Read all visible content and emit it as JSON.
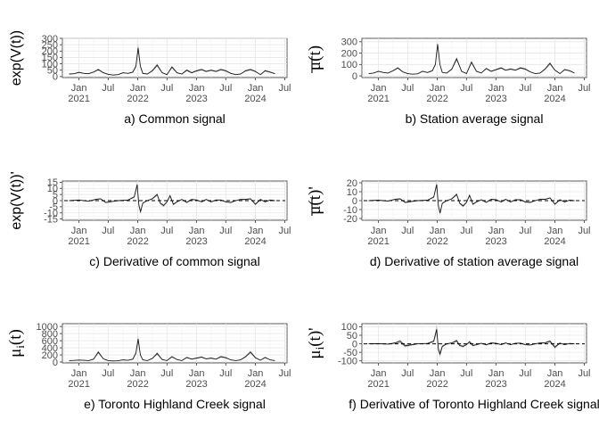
{
  "chart_data": [
    {
      "type": "line",
      "caption": "a) Common signal",
      "ylabel": "exp(V(t))",
      "yticks": [
        0,
        50,
        100,
        150,
        200,
        250,
        300
      ],
      "ylim": [
        -8,
        300
      ],
      "baseline": null,
      "xlim": [
        "2020-09-20",
        "2024-07-15"
      ],
      "xticks": [
        "2021-01-01",
        "2021-07-01",
        "2022-01-01",
        "2022-07-01",
        "2023-01-01",
        "2023-07-01",
        "2024-01-01",
        "2024-07-01"
      ],
      "xticklabels": [
        "Jan\n2021",
        "Jul",
        "Jan\n2022",
        "Jul",
        "Jan\n2023",
        "Jul",
        "Jan\n2024",
        "Jul"
      ],
      "x": [
        "2020-11-01",
        "2020-12-01",
        "2021-01-01",
        "2021-02-01",
        "2021-03-01",
        "2021-04-01",
        "2021-05-01",
        "2021-06-01",
        "2021-07-01",
        "2021-08-01",
        "2021-09-01",
        "2021-10-01",
        "2021-11-01",
        "2021-12-01",
        "2021-12-20",
        "2022-01-03",
        "2022-01-17",
        "2022-02-01",
        "2022-03-01",
        "2022-04-01",
        "2022-05-01",
        "2022-06-01",
        "2022-07-01",
        "2022-08-01",
        "2022-09-01",
        "2022-10-01",
        "2022-11-01",
        "2022-12-01",
        "2023-01-01",
        "2023-02-01",
        "2023-03-01",
        "2023-04-01",
        "2023-05-01",
        "2023-06-01",
        "2023-07-01",
        "2023-08-01",
        "2023-09-01",
        "2023-10-01",
        "2023-11-01",
        "2023-12-01",
        "2024-01-01",
        "2024-02-01",
        "2024-03-01",
        "2024-04-01",
        "2024-05-01"
      ],
      "series": [
        {
          "values": [
            20,
            22,
            33,
            25,
            22,
            35,
            55,
            30,
            18,
            12,
            15,
            30,
            25,
            35,
            80,
            225,
            80,
            25,
            20,
            45,
            90,
            30,
            15,
            75,
            30,
            20,
            50,
            30,
            45,
            55,
            40,
            50,
            40,
            55,
            45,
            25,
            15,
            20,
            45,
            55,
            40,
            15,
            45,
            35,
            22
          ],
          "band": [
            3,
            3,
            4,
            3,
            3,
            4,
            8,
            4,
            3,
            2,
            2,
            4,
            3,
            5,
            12,
            35,
            12,
            4,
            3,
            7,
            14,
            5,
            2,
            10,
            5,
            3,
            8,
            5,
            7,
            8,
            6,
            7,
            6,
            8,
            7,
            4,
            2,
            3,
            7,
            8,
            6,
            2,
            7,
            5,
            3
          ]
        }
      ]
    },
    {
      "type": "line",
      "caption": "b) Station average signal",
      "ylabel": "μ(t)",
      "ylabel_overline": true,
      "yticks": [
        0,
        100,
        200,
        300
      ],
      "ylim": [
        -15,
        330
      ],
      "baseline": null,
      "xlim": [
        "2020-09-20",
        "2024-07-15"
      ],
      "xticks": [
        "2021-01-01",
        "2021-07-01",
        "2022-01-01",
        "2022-07-01",
        "2023-01-01",
        "2023-07-01",
        "2024-01-01",
        "2024-07-01"
      ],
      "xticklabels": [
        "Jan\n2021",
        "Jul",
        "Jan\n2022",
        "Jul",
        "Jan\n2023",
        "Jul",
        "Jan\n2024",
        "Jul"
      ],
      "x": [
        "2020-11-01",
        "2020-12-01",
        "2021-01-01",
        "2021-02-01",
        "2021-03-01",
        "2021-04-01",
        "2021-05-01",
        "2021-06-01",
        "2021-07-01",
        "2021-08-01",
        "2021-09-01",
        "2021-10-01",
        "2021-11-01",
        "2021-12-01",
        "2021-12-20",
        "2022-01-03",
        "2022-01-17",
        "2022-02-01",
        "2022-03-01",
        "2022-04-01",
        "2022-05-01",
        "2022-06-01",
        "2022-07-01",
        "2022-08-01",
        "2022-09-01",
        "2022-10-01",
        "2022-11-01",
        "2022-12-01",
        "2023-01-01",
        "2023-02-01",
        "2023-03-01",
        "2023-04-01",
        "2023-05-01",
        "2023-06-01",
        "2023-07-01",
        "2023-08-01",
        "2023-09-01",
        "2023-10-01",
        "2023-11-01",
        "2023-12-01",
        "2024-01-01",
        "2024-02-01",
        "2024-03-01",
        "2024-04-01",
        "2024-05-01"
      ],
      "series": [
        {
          "values": [
            20,
            25,
            40,
            30,
            25,
            45,
            70,
            35,
            20,
            15,
            18,
            40,
            30,
            45,
            100,
            280,
            100,
            30,
            25,
            60,
            150,
            40,
            20,
            120,
            40,
            25,
            65,
            40,
            55,
            70,
            50,
            60,
            50,
            70,
            60,
            35,
            20,
            25,
            60,
            110,
            50,
            20,
            55,
            45,
            25
          ],
          "band": [
            3,
            3,
            5,
            4,
            3,
            6,
            9,
            5,
            3,
            2,
            2,
            5,
            4,
            6,
            10,
            15,
            10,
            4,
            3,
            8,
            18,
            5,
            3,
            14,
            5,
            3,
            8,
            5,
            7,
            9,
            6,
            8,
            6,
            9,
            8,
            4,
            2,
            3,
            8,
            13,
            6,
            2,
            7,
            6,
            3
          ]
        }
      ]
    },
    {
      "type": "line",
      "caption": "c) Derivative of common signal",
      "ylabel": "exp(V(t))'",
      "yticks": [
        -15,
        -10,
        -5,
        0,
        5,
        10,
        15
      ],
      "ylim": [
        -16,
        16
      ],
      "baseline": 0,
      "xlim": [
        "2020-09-20",
        "2024-07-15"
      ],
      "xticks": [
        "2021-01-01",
        "2021-07-01",
        "2022-01-01",
        "2022-07-01",
        "2023-01-01",
        "2023-07-01",
        "2024-01-01",
        "2024-07-01"
      ],
      "xticklabels": [
        "Jan\n2021",
        "Jul",
        "Jan\n2022",
        "Jul",
        "Jan\n2023",
        "Jul",
        "Jan\n2024",
        "Jul"
      ],
      "x": [
        "2020-11-01",
        "2021-01-01",
        "2021-03-01",
        "2021-04-15",
        "2021-05-15",
        "2021-06-15",
        "2021-09-01",
        "2021-11-01",
        "2021-12-10",
        "2021-12-28",
        "2022-01-08",
        "2022-01-18",
        "2022-02-01",
        "2022-03-01",
        "2022-04-01",
        "2022-05-01",
        "2022-05-20",
        "2022-06-10",
        "2022-07-01",
        "2022-07-20",
        "2022-08-10",
        "2022-09-01",
        "2022-10-01",
        "2022-11-01",
        "2022-12-01",
        "2023-01-01",
        "2023-02-01",
        "2023-03-01",
        "2023-04-01",
        "2023-05-01",
        "2023-06-01",
        "2023-07-01",
        "2023-08-01",
        "2023-09-01",
        "2023-10-01",
        "2023-11-01",
        "2023-12-01",
        "2024-01-01",
        "2024-02-01",
        "2024-03-01",
        "2024-04-01",
        "2024-05-01"
      ],
      "series": [
        {
          "values": [
            0,
            0.5,
            -0.5,
            1,
            1.5,
            -1.5,
            0,
            0.5,
            3,
            13,
            -4,
            -9,
            -2,
            0,
            1.5,
            5,
            -2,
            -4,
            -1,
            4,
            -3,
            -1,
            1,
            -1.5,
            1,
            0.5,
            -1,
            1,
            -1,
            0.5,
            0.5,
            -1,
            -1.5,
            0,
            1,
            1,
            1.5,
            -3,
            1,
            -1,
            0.5,
            0
          ],
          "band": [
            0.3,
            0.3,
            0.3,
            0.5,
            0.5,
            0.6,
            0.3,
            0.3,
            1,
            2.5,
            1.5,
            1.8,
            0.8,
            0.3,
            0.6,
            1.2,
            0.8,
            1.2,
            0.5,
            1,
            0.9,
            0.5,
            0.4,
            0.6,
            0.4,
            0.4,
            0.5,
            0.5,
            0.5,
            0.4,
            0.4,
            0.5,
            0.6,
            0.3,
            0.5,
            0.5,
            0.6,
            0.9,
            0.5,
            0.5,
            0.3,
            0.3
          ]
        }
      ]
    },
    {
      "type": "line",
      "caption": "d) Derivative of station average signal",
      "ylabel": "μ(t)'",
      "ylabel_overline": true,
      "yticks": [
        -20,
        -10,
        0,
        10,
        20
      ],
      "ylim": [
        -22,
        22
      ],
      "baseline": 0,
      "xlim": [
        "2020-09-20",
        "2024-07-15"
      ],
      "xticks": [
        "2021-01-01",
        "2021-07-01",
        "2022-01-01",
        "2022-07-01",
        "2023-01-01",
        "2023-07-01",
        "2024-01-01",
        "2024-07-01"
      ],
      "xticklabels": [
        "Jan\n2021",
        "Jul",
        "Jan\n2022",
        "Jul",
        "Jan\n2023",
        "Jul",
        "Jan\n2024",
        "Jul"
      ],
      "x": [
        "2020-11-01",
        "2021-01-01",
        "2021-03-01",
        "2021-04-15",
        "2021-05-15",
        "2021-06-15",
        "2021-09-01",
        "2021-11-01",
        "2021-12-10",
        "2021-12-28",
        "2022-01-08",
        "2022-01-18",
        "2022-02-01",
        "2022-03-01",
        "2022-04-01",
        "2022-05-01",
        "2022-05-20",
        "2022-06-10",
        "2022-07-01",
        "2022-07-20",
        "2022-08-10",
        "2022-09-01",
        "2022-10-01",
        "2022-11-01",
        "2022-12-01",
        "2023-01-01",
        "2023-02-01",
        "2023-03-01",
        "2023-04-01",
        "2023-05-01",
        "2023-06-01",
        "2023-07-01",
        "2023-08-01",
        "2023-09-01",
        "2023-10-01",
        "2023-11-01",
        "2023-12-01",
        "2024-01-01",
        "2024-02-01",
        "2024-03-01",
        "2024-04-01",
        "2024-05-01"
      ],
      "series": [
        {
          "values": [
            0,
            0.5,
            -0.5,
            1.5,
            2,
            -2,
            0,
            0.5,
            4,
            18,
            -6,
            -14,
            -3,
            0,
            2,
            7,
            -3,
            -6,
            -2,
            6,
            -4,
            -1.5,
            1,
            -2,
            1.5,
            1,
            -1.5,
            1.5,
            -1.5,
            1,
            1,
            -1.5,
            -2,
            0,
            1.5,
            1.5,
            3,
            -4,
            1,
            -1.5,
            0.5,
            0
          ],
          "band": [
            0.4,
            0.4,
            0.4,
            0.6,
            0.7,
            0.8,
            0.4,
            0.4,
            1.3,
            3.5,
            2,
            2.6,
            1.1,
            0.4,
            0.8,
            1.7,
            1.1,
            1.6,
            0.7,
            1.4,
            1.2,
            0.7,
            0.5,
            0.8,
            0.6,
            0.5,
            0.7,
            0.7,
            0.7,
            0.5,
            0.5,
            0.7,
            0.8,
            0.4,
            0.7,
            0.7,
            0.9,
            1.3,
            0.6,
            0.6,
            0.4,
            0.4
          ]
        }
      ]
    },
    {
      "type": "line",
      "caption": "e) Toronto Highland Creek signal",
      "ylabel": "μ",
      "ylabel_sub": "i",
      "ylabel_tail": "(t)",
      "yticks": [
        0,
        200,
        400,
        600,
        800,
        1000
      ],
      "ylim": [
        -25,
        1080
      ],
      "baseline": null,
      "xlim": [
        "2020-09-20",
        "2024-07-15"
      ],
      "xticks": [
        "2021-01-01",
        "2021-07-01",
        "2022-01-01",
        "2022-07-01",
        "2023-01-01",
        "2023-07-01",
        "2024-01-01",
        "2024-07-01"
      ],
      "xticklabels": [
        "Jan\n2021",
        "Jul",
        "Jan\n2022",
        "Jul",
        "Jan\n2023",
        "Jul",
        "Jan\n2024",
        "Jul"
      ],
      "x": [
        "2020-11-01",
        "2020-12-01",
        "2021-01-01",
        "2021-02-01",
        "2021-03-01",
        "2021-04-01",
        "2021-05-01",
        "2021-06-01",
        "2021-07-01",
        "2021-08-01",
        "2021-09-01",
        "2021-10-01",
        "2021-11-01",
        "2021-12-01",
        "2021-12-20",
        "2022-01-03",
        "2022-01-17",
        "2022-02-01",
        "2022-03-01",
        "2022-04-01",
        "2022-05-01",
        "2022-06-01",
        "2022-07-01",
        "2022-08-01",
        "2022-09-01",
        "2022-10-01",
        "2022-11-01",
        "2022-12-01",
        "2023-01-01",
        "2023-02-01",
        "2023-03-01",
        "2023-04-01",
        "2023-05-01",
        "2023-06-01",
        "2023-07-01",
        "2023-08-01",
        "2023-09-01",
        "2023-10-01",
        "2023-11-01",
        "2023-12-01",
        "2024-01-01",
        "2024-02-01",
        "2024-03-01",
        "2024-04-01",
        "2024-05-01"
      ],
      "series": [
        {
          "values": [
            40,
            45,
            55,
            50,
            40,
            80,
            280,
            90,
            40,
            30,
            35,
            60,
            50,
            80,
            250,
            650,
            200,
            60,
            40,
            100,
            240,
            70,
            40,
            150,
            70,
            40,
            130,
            80,
            110,
            140,
            90,
            110,
            80,
            150,
            120,
            60,
            40,
            60,
            150,
            280,
            120,
            50,
            130,
            60,
            40
          ],
          "band": [
            8,
            8,
            10,
            9,
            8,
            15,
            45,
            16,
            8,
            6,
            6,
            11,
            9,
            14,
            40,
            110,
            35,
            11,
            8,
            18,
            40,
            13,
            8,
            26,
            13,
            8,
            22,
            14,
            19,
            24,
            16,
            19,
            14,
            26,
            21,
            11,
            8,
            11,
            26,
            45,
            21,
            9,
            22,
            11,
            8
          ]
        }
      ]
    },
    {
      "type": "line",
      "caption": "f) Derivative of Toronto Highland Creek signal",
      "ylabel": "μ",
      "ylabel_sub": "i",
      "ylabel_tail": "(t)'",
      "yticks": [
        -100,
        -50,
        0,
        50,
        100
      ],
      "ylim": [
        -112,
        118
      ],
      "baseline": 0,
      "xlim": [
        "2020-09-20",
        "2024-07-15"
      ],
      "xticks": [
        "2021-01-01",
        "2021-07-01",
        "2022-01-01",
        "2022-07-01",
        "2023-01-01",
        "2023-07-01",
        "2024-01-01",
        "2024-07-01"
      ],
      "xticklabels": [
        "Jan\n2021",
        "Jul",
        "Jan\n2022",
        "Jul",
        "Jan\n2023",
        "Jul",
        "Jan\n2024",
        "Jul"
      ],
      "x": [
        "2020-11-01",
        "2021-01-01",
        "2021-03-01",
        "2021-04-15",
        "2021-05-15",
        "2021-06-15",
        "2021-09-01",
        "2021-11-01",
        "2021-12-10",
        "2021-12-28",
        "2022-01-08",
        "2022-01-18",
        "2022-02-01",
        "2022-03-01",
        "2022-04-01",
        "2022-05-01",
        "2022-05-20",
        "2022-06-10",
        "2022-07-01",
        "2022-07-20",
        "2022-08-10",
        "2022-09-01",
        "2022-10-01",
        "2022-11-01",
        "2022-12-01",
        "2023-01-01",
        "2023-02-01",
        "2023-03-01",
        "2023-04-01",
        "2023-05-01",
        "2023-06-01",
        "2023-07-01",
        "2023-08-01",
        "2023-09-01",
        "2023-10-01",
        "2023-11-01",
        "2023-12-01",
        "2024-01-01",
        "2024-02-01",
        "2024-03-01",
        "2024-04-01",
        "2024-05-01"
      ],
      "series": [
        {
          "values": [
            0,
            1,
            -2,
            5,
            15,
            -12,
            0,
            2,
            15,
            85,
            -35,
            -60,
            -15,
            0,
            5,
            18,
            -10,
            -15,
            -5,
            12,
            -10,
            -5,
            3,
            -6,
            5,
            3,
            -5,
            5,
            -5,
            3,
            4,
            -5,
            -7,
            0,
            5,
            6,
            15,
            -20,
            4,
            -5,
            2,
            0
          ],
          "band": [
            2,
            2,
            3,
            5,
            10,
            9,
            2,
            3,
            8,
            30,
            14,
            20,
            7,
            2,
            4,
            9,
            6,
            8,
            3,
            7,
            6,
            3,
            2,
            4,
            3,
            2,
            3,
            3,
            3,
            2,
            3,
            3,
            4,
            2,
            3,
            4,
            8,
            10,
            3,
            3,
            2,
            2
          ]
        }
      ]
    }
  ]
}
